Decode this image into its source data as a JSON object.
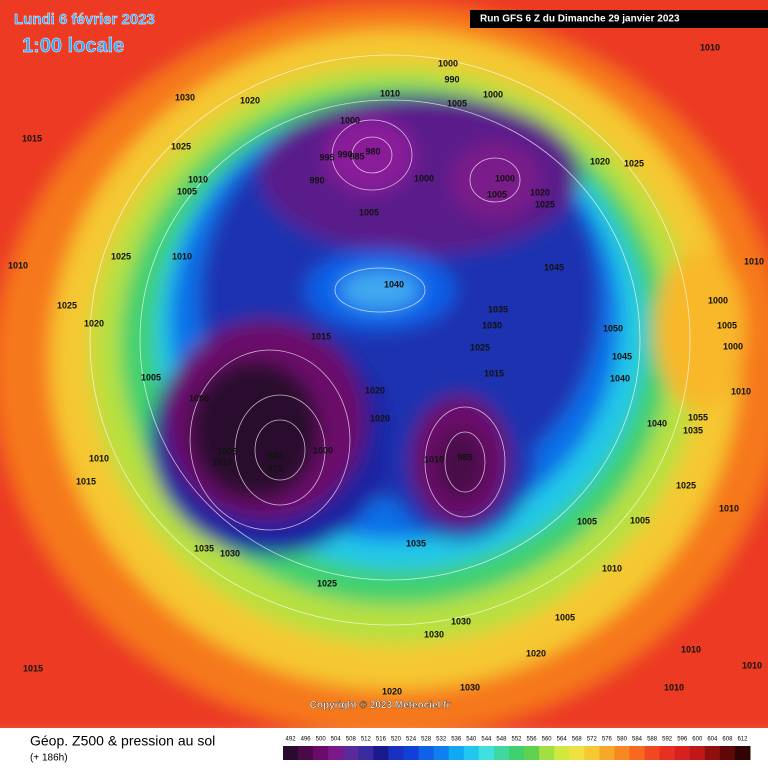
{
  "header": {
    "date": "Lundi 6 février 2023",
    "time": "1:00 locale",
    "run": "Run GFS 6 Z du Dimanche 29 janvier 2023",
    "copyright": "Copyright © 2023 Meteociel.fr"
  },
  "footer": {
    "title": "Géop. Z500 & pression au sol",
    "lead": "(+ 186h)"
  },
  "legend": {
    "ticks": [
      492,
      496,
      500,
      504,
      508,
      512,
      516,
      520,
      524,
      528,
      532,
      536,
      540,
      544,
      548,
      552,
      556,
      560,
      564,
      568,
      572,
      576,
      580,
      584,
      588,
      592,
      596,
      600,
      604,
      608,
      612
    ],
    "colors": [
      "#2a0a2e",
      "#4a0a4a",
      "#6a0a6a",
      "#7a1a8a",
      "#5a2a9a",
      "#3a2aa0",
      "#1a1a90",
      "#1a30c0",
      "#1040d8",
      "#1060e8",
      "#1080f0",
      "#10a8f0",
      "#20c8f0",
      "#40e0e0",
      "#40d8a0",
      "#40d070",
      "#60d050",
      "#a0e040",
      "#d0e840",
      "#f0e040",
      "#f8c830",
      "#f8a828",
      "#f88820",
      "#f86820",
      "#f04820",
      "#e83020",
      "#d82020",
      "#c01818",
      "#901010",
      "#600808",
      "#300404"
    ]
  },
  "isobar_labels": [
    1010,
    1000,
    990,
    1010,
    1005,
    1000,
    1030,
    1020,
    1015,
    1025,
    1000,
    980,
    995,
    990,
    985,
    990,
    1000,
    1000,
    1005,
    1020,
    1025,
    1020,
    1025,
    1010,
    1005,
    1005,
    1025,
    1010,
    1010,
    1010,
    1045,
    1040,
    1035,
    1025,
    1020,
    1030,
    1050,
    1000,
    1005,
    1015,
    1025,
    1000,
    1045,
    1005,
    1015,
    1040,
    1010,
    1020,
    1000,
    1020,
    1040,
    1055,
    1035,
    980,
    975,
    1005,
    1010,
    1000,
    1010,
    1015,
    1010,
    985,
    1025,
    1005,
    1005,
    1010,
    1035,
    1030,
    1035,
    1010,
    1025,
    1005,
    1030,
    1030,
    1020,
    1010,
    1010,
    1015,
    1030,
    1020,
    1010
  ]
}
